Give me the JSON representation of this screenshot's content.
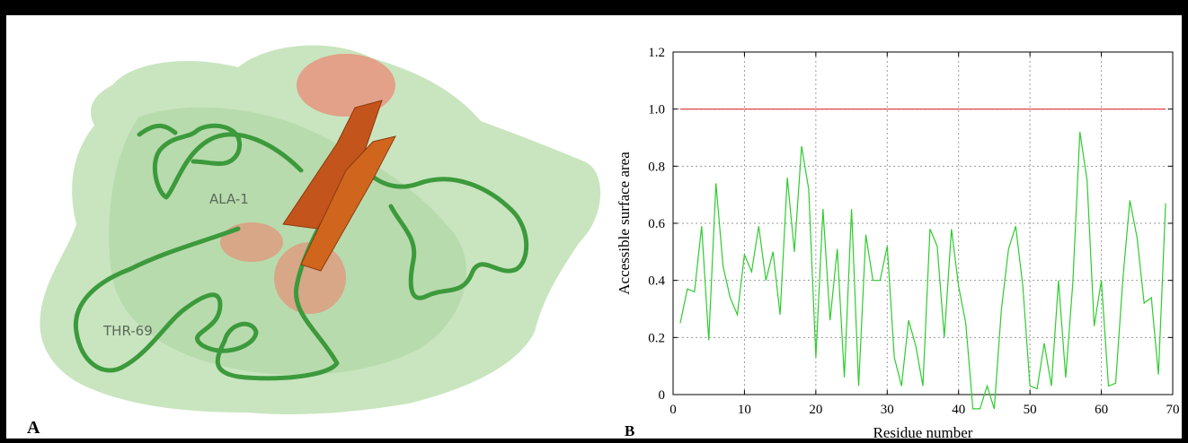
{
  "figure": {
    "panel_a": {
      "label": "A",
      "annotations": [
        "ALA-1",
        "THR-69"
      ],
      "colors": {
        "surface": "#bfe0b4",
        "coil": "#3c9a3c",
        "strand": "#c2541c",
        "highlight": "#f07c6a"
      }
    },
    "panel_b": {
      "label": "B"
    }
  },
  "chart_data": {
    "type": "line",
    "title": "",
    "xlabel": "Residue number",
    "ylabel": "Accessible surface area",
    "xlim": [
      0,
      70
    ],
    "ylim": [
      0,
      1.2
    ],
    "x_ticks": [
      "0",
      "10",
      "20",
      "30",
      "40",
      "50",
      "60",
      "70"
    ],
    "y_ticks": [
      "0",
      "0.2",
      "0.4",
      "0.6",
      "0.8",
      "1.0",
      "1.2"
    ],
    "grid": true,
    "legend": "none",
    "series": [
      {
        "color": "#2ecc2e",
        "x": [
          1,
          2,
          3,
          4,
          5,
          6,
          7,
          8,
          9,
          10,
          11,
          12,
          13,
          14,
          15,
          16,
          17,
          18,
          19,
          20,
          21,
          22,
          23,
          24,
          25,
          26,
          27,
          28,
          29,
          30,
          31,
          32,
          33,
          34,
          35,
          36,
          37,
          38,
          39,
          40,
          41,
          42,
          43,
          44,
          45,
          46,
          47,
          48,
          49,
          50,
          51,
          52,
          53,
          54,
          55,
          56,
          57,
          58,
          59,
          60,
          61,
          62,
          63,
          64,
          65,
          66,
          67,
          68,
          69
        ],
        "y": [
          0.25,
          0.37,
          0.36,
          0.59,
          0.19,
          0.74,
          0.45,
          0.34,
          0.28,
          0.49,
          0.43,
          0.59,
          0.4,
          0.5,
          0.28,
          0.76,
          0.5,
          0.87,
          0.72,
          0.13,
          0.65,
          0.26,
          0.51,
          0.06,
          0.65,
          0.03,
          0.56,
          0.4,
          0.4,
          0.52,
          0.13,
          0.03,
          0.26,
          0.17,
          0.03,
          0.58,
          0.52,
          0.2,
          0.58,
          0.38,
          0.25,
          -0.05,
          -0.05,
          0.03,
          -0.05,
          0.3,
          0.51,
          0.59,
          0.38,
          0.03,
          0.02,
          0.18,
          0.03,
          0.4,
          0.06,
          0.39,
          0.92,
          0.75,
          0.24,
          0.4,
          0.03,
          0.04,
          0.4,
          0.68,
          0.55,
          0.32,
          0.34,
          0.07,
          0.67
        ]
      },
      {
        "color": "#e03030",
        "x": [
          1,
          69
        ],
        "y": [
          1.0,
          1.0
        ]
      }
    ]
  }
}
